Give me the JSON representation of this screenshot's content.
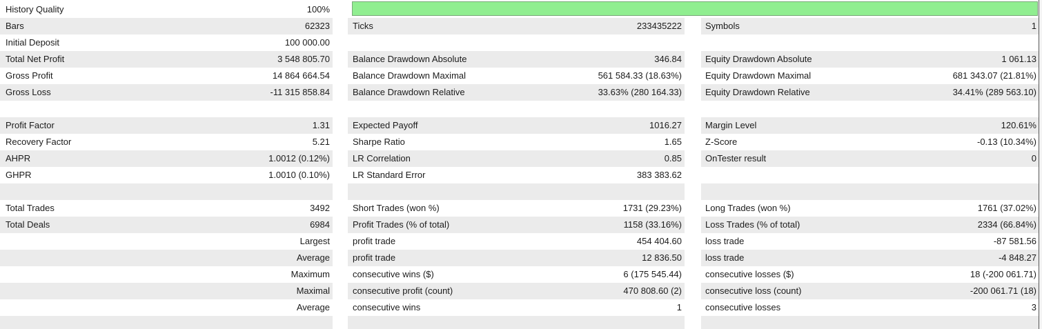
{
  "colors": {
    "row_alt_background": "#ebebeb",
    "text": "#1b1b1b",
    "progress_fill": "#90ee90",
    "progress_border": "#77a877",
    "right_edge_line": "#565656"
  },
  "progress_bar": {
    "metric": "History Quality",
    "value": "100%",
    "percent": 100
  },
  "rows": [
    {
      "bg": "white",
      "bar": true,
      "c1": {
        "label": "History Quality",
        "value": "100%"
      }
    },
    {
      "bg": "gray",
      "c1": {
        "label": "Bars",
        "value": "62323"
      },
      "c2": {
        "label": "Ticks",
        "value": "233435222"
      },
      "c3": {
        "label": "Symbols",
        "value": "1"
      }
    },
    {
      "bg": "white",
      "c1": {
        "label": "Initial Deposit",
        "value": "100 000.00"
      },
      "c2": {
        "label": "",
        "value": ""
      },
      "c3": {
        "label": "",
        "value": ""
      }
    },
    {
      "bg": "gray",
      "c1": {
        "label": "Total Net Profit",
        "value": "3 548 805.70"
      },
      "c2": {
        "label": "Balance Drawdown Absolute",
        "value": "346.84"
      },
      "c3": {
        "label": "Equity Drawdown Absolute",
        "value": "1 061.13"
      }
    },
    {
      "bg": "white",
      "c1": {
        "label": "Gross Profit",
        "value": "14 864 664.54"
      },
      "c2": {
        "label": "Balance Drawdown Maximal",
        "value": "561 584.33 (18.63%)"
      },
      "c3": {
        "label": "Equity Drawdown Maximal",
        "value": "681 343.07 (21.81%)"
      }
    },
    {
      "bg": "gray",
      "c1": {
        "label": "Gross Loss",
        "value": "-11 315 858.84"
      },
      "c2": {
        "label": "Balance Drawdown Relative",
        "value": "33.63% (280 164.33)"
      },
      "c3": {
        "label": "Equity Drawdown Relative",
        "value": "34.41% (289 563.10)"
      }
    },
    {
      "bg": "white",
      "c1": {
        "label": "",
        "value": ""
      },
      "c2": {
        "label": "",
        "value": ""
      },
      "c3": {
        "label": "",
        "value": ""
      }
    },
    {
      "bg": "gray",
      "c1": {
        "label": "Profit Factor",
        "value": "1.31"
      },
      "c2": {
        "label": "Expected Payoff",
        "value": "1016.27"
      },
      "c3": {
        "label": "Margin Level",
        "value": "120.61%"
      }
    },
    {
      "bg": "white",
      "c1": {
        "label": "Recovery Factor",
        "value": "5.21"
      },
      "c2": {
        "label": "Sharpe Ratio",
        "value": "1.65"
      },
      "c3": {
        "label": "Z-Score",
        "value": "-0.13 (10.34%)"
      }
    },
    {
      "bg": "gray",
      "c1": {
        "label": "AHPR",
        "value": "1.0012 (0.12%)"
      },
      "c2": {
        "label": "LR Correlation",
        "value": "0.85"
      },
      "c3": {
        "label": "OnTester result",
        "value": "0"
      }
    },
    {
      "bg": "white",
      "c1": {
        "label": "GHPR",
        "value": "1.0010 (0.10%)"
      },
      "c2": {
        "label": "LR Standard Error",
        "value": "383 383.62"
      },
      "c3": {
        "label": "",
        "value": ""
      }
    },
    {
      "bg": "gray",
      "c1": {
        "label": "",
        "value": ""
      },
      "c2": {
        "label": "",
        "value": ""
      },
      "c3": {
        "label": "",
        "value": ""
      }
    },
    {
      "bg": "white",
      "c1": {
        "label": "Total Trades",
        "value": "3492"
      },
      "c2": {
        "label": "Short Trades (won %)",
        "value": "1731 (29.23%)"
      },
      "c3": {
        "label": "Long Trades (won %)",
        "value": "1761 (37.02%)"
      }
    },
    {
      "bg": "gray",
      "c1": {
        "label": "Total Deals",
        "value": "6984"
      },
      "c2": {
        "label": "Profit Trades (% of total)",
        "value": "1158 (33.16%)"
      },
      "c3": {
        "label": "Loss Trades (% of total)",
        "value": "2334 (66.84%)"
      }
    },
    {
      "bg": "white",
      "c1": {
        "label": "",
        "value": "Largest"
      },
      "c2": {
        "label": "profit trade",
        "value": "454 404.60"
      },
      "c3": {
        "label": "loss trade",
        "value": "-87 581.56"
      }
    },
    {
      "bg": "gray",
      "c1": {
        "label": "",
        "value": "Average"
      },
      "c2": {
        "label": "profit trade",
        "value": "12 836.50"
      },
      "c3": {
        "label": "loss trade",
        "value": "-4 848.27"
      }
    },
    {
      "bg": "white",
      "c1": {
        "label": "",
        "value": "Maximum"
      },
      "c2": {
        "label": "consecutive wins ($)",
        "value": "6 (175 545.44)"
      },
      "c3": {
        "label": "consecutive losses ($)",
        "value": "18 (-200 061.71)"
      }
    },
    {
      "bg": "gray",
      "c1": {
        "label": "",
        "value": "Maximal"
      },
      "c2": {
        "label": "consecutive profit (count)",
        "value": "470 808.60 (2)"
      },
      "c3": {
        "label": "consecutive loss (count)",
        "value": "-200 061.71 (18)"
      }
    },
    {
      "bg": "white",
      "c1": {
        "label": "",
        "value": "Average"
      },
      "c2": {
        "label": "consecutive wins",
        "value": "1"
      },
      "c3": {
        "label": "consecutive losses",
        "value": "3"
      }
    }
  ]
}
